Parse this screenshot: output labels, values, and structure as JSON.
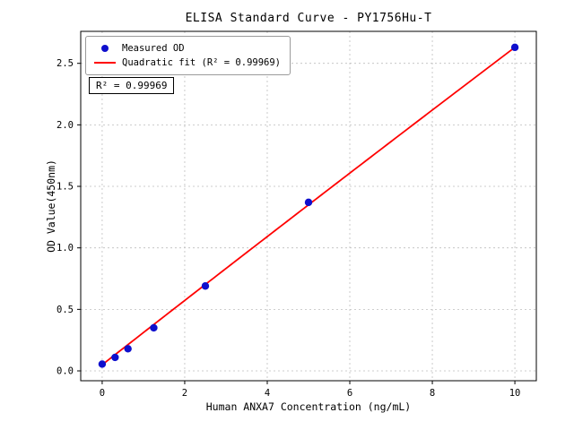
{
  "figure": {
    "background_color": "#ffffff",
    "frame_color": "#000000"
  },
  "chart_data": {
    "type": "scatter",
    "title": "ELISA Standard Curve - PY1756Hu-T",
    "xlabel": "Human ANXA7 Concentration (ng/mL)",
    "ylabel": "OD Value(450nm)",
    "xlim": [
      -0.52,
      10.52
    ],
    "ylim": [
      -0.08,
      2.76
    ],
    "xticks": [
      0,
      2,
      4,
      6,
      8,
      10
    ],
    "xtick_labels": [
      "0",
      "2",
      "4",
      "6",
      "8",
      "10"
    ],
    "yticks": [
      0,
      0.5,
      1,
      1.5,
      2,
      2.5
    ],
    "ytick_labels": [
      "0.0",
      "0.5",
      "1.0",
      "1.5",
      "2.0",
      "2.5"
    ],
    "grid": true,
    "grid_color": "#bdbdbd",
    "annotation": "R² = 0.99969",
    "legend_position": "upper-left",
    "series": [
      {
        "name": "Measured OD",
        "type": "scatter",
        "color": "#0f0fcd",
        "x": [
          0,
          0.313,
          0.625,
          1.25,
          2.5,
          5,
          10
        ],
        "y": [
          0.055,
          0.11,
          0.18,
          0.35,
          0.69,
          1.37,
          2.63
        ]
      },
      {
        "name": "Quadratic fit (R² = 0.99969)",
        "type": "line",
        "color": "#ff0000",
        "fit_coefficients": {
          "a": -0.0004,
          "b": 0.262,
          "c": 0.05
        },
        "x_range": [
          0,
          10
        ]
      }
    ]
  }
}
